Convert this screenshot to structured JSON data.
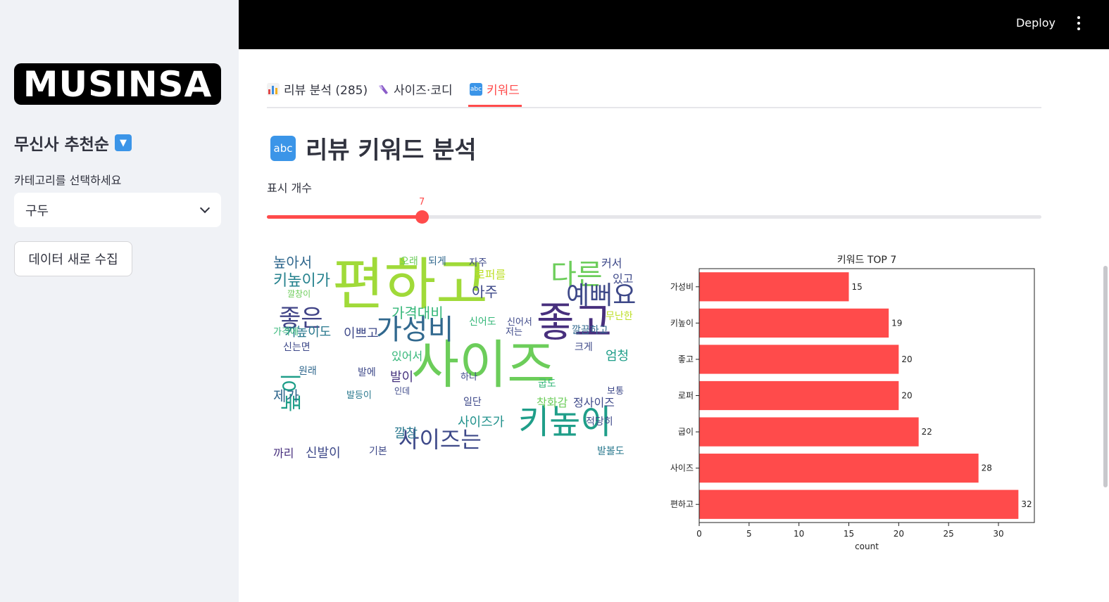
{
  "sidebar": {
    "logo_text": "MUSINSA",
    "title": "무신사 추천순",
    "title_icon": "down-arrow-icon",
    "category_label": "카테고리를 선택하세요",
    "category_value": "구두",
    "refresh_button": "데이터 새로 수집"
  },
  "header": {
    "deploy": "Deploy"
  },
  "tabs": [
    {
      "label": "리뷰 분석 (285)",
      "icon": "bar-chart-icon"
    },
    {
      "label": "사이즈·코디",
      "icon": "shoe-icon"
    },
    {
      "label": "키워드",
      "icon": "abc-icon"
    }
  ],
  "main": {
    "heading": "리뷰 키워드 분석",
    "heading_icon": "abc-icon",
    "slider_label": "표시 개수",
    "slider_value": "7",
    "slider_fraction": 0.2
  },
  "wordcloud": {
    "words": [
      {
        "text": "편하고",
        "color": "#a0da39",
        "size": 80
      },
      {
        "text": "사이즈",
        "color": "#6ccd5a",
        "size": 74
      },
      {
        "text": "좋고",
        "color": "#472f7d",
        "size": 58
      },
      {
        "text": "키높이",
        "color": "#1f9e89",
        "size": 48
      },
      {
        "text": "가성비",
        "color": "#31688e",
        "size": 40
      },
      {
        "text": "다른",
        "color": "#6ccd5a",
        "size": 40
      },
      {
        "text": "예뻐요",
        "color": "#3e4989",
        "size": 36
      },
      {
        "text": "좋은",
        "color": "#414487",
        "size": 34
      },
      {
        "text": "사이즈는",
        "color": "#3e4989",
        "size": 32
      },
      {
        "text": "높이",
        "color": "#1f9e89",
        "size": 30
      },
      {
        "text": "키높이가",
        "color": "#26828e",
        "size": 22
      },
      {
        "text": "높아서",
        "color": "#31688e",
        "size": 20
      },
      {
        "text": "가격대비",
        "color": "#35b779",
        "size": 20
      },
      {
        "text": "아주",
        "color": "#3e4989",
        "size": 20
      },
      {
        "text": "키높이도",
        "color": "#2a788e",
        "size": 18
      },
      {
        "text": "이쁘고",
        "color": "#3e4989",
        "size": 18
      },
      {
        "text": "엄청",
        "color": "#1f9e89",
        "size": 18
      },
      {
        "text": "발이",
        "color": "#46337e",
        "size": 18
      },
      {
        "text": "제가",
        "color": "#31688e",
        "size": 20
      },
      {
        "text": "까리",
        "color": "#472f7d",
        "size": 16
      },
      {
        "text": "신발이",
        "color": "#3e4989",
        "size": 18
      },
      {
        "text": "깔창",
        "color": "#2a788e",
        "size": 18
      },
      {
        "text": "사이즈가",
        "color": "#21918c",
        "size": 18
      },
      {
        "text": "정사이즈",
        "color": "#3e4989",
        "size": 16
      },
      {
        "text": "착화감",
        "color": "#6ccd5a",
        "size": 16
      },
      {
        "text": "커서",
        "color": "#3e4989",
        "size": 16
      },
      {
        "text": "로퍼를",
        "color": "#bddf26",
        "size": 16
      },
      {
        "text": "오래",
        "color": "#6ccd5a",
        "size": 14
      },
      {
        "text": "되게",
        "color": "#31688e",
        "size": 14
      },
      {
        "text": "자주",
        "color": "#3e4989",
        "size": 14
      },
      {
        "text": "신어도",
        "color": "#35b779",
        "size": 14
      },
      {
        "text": "있고",
        "color": "#3e4989",
        "size": 16
      },
      {
        "text": "무난한",
        "color": "#bddf26",
        "size": 14
      },
      {
        "text": "깔끔하고",
        "color": "#31688e",
        "size": 14
      },
      {
        "text": "신는면",
        "color": "#3e4989",
        "size": 14
      },
      {
        "text": "원래",
        "color": "#31688e",
        "size": 14
      },
      {
        "text": "발에",
        "color": "#3e4989",
        "size": 14
      },
      {
        "text": "있어서",
        "color": "#35b779",
        "size": 16
      },
      {
        "text": "적당히",
        "color": "#3e4989",
        "size": 14
      },
      {
        "text": "발볼도",
        "color": "#2a788e",
        "size": 14
      },
      {
        "text": "기본",
        "color": "#3e4989",
        "size": 14
      },
      {
        "text": "굽도",
        "color": "#35b779",
        "size": 14
      },
      {
        "text": "크게",
        "color": "#3e4989",
        "size": 14
      },
      {
        "text": "일단",
        "color": "#3e4989",
        "size": 14
      },
      {
        "text": "하나",
        "color": "#3e4989",
        "size": 13
      },
      {
        "text": "가격에",
        "color": "#35b779",
        "size": 13
      },
      {
        "text": "저는",
        "color": "#3e4989",
        "size": 13
      },
      {
        "text": "신어서",
        "color": "#3e4989",
        "size": 13
      },
      {
        "text": "발등이",
        "color": "#2a788e",
        "size": 13
      },
      {
        "text": "인데",
        "color": "#3e4989",
        "size": 12
      },
      {
        "text": "깔창이",
        "color": "#6ccd5a",
        "size": 12
      },
      {
        "text": "보통",
        "color": "#3e4989",
        "size": 13
      }
    ]
  },
  "chart_data": {
    "type": "bar",
    "orientation": "horizontal",
    "title": "키워드 TOP 7",
    "xlabel": "count",
    "ylabel": "",
    "categories": [
      "가성비",
      "키높이",
      "좋고",
      "로퍼",
      "굽이",
      "사이즈",
      "편하고"
    ],
    "values": [
      15,
      19,
      20,
      20,
      22,
      28,
      32
    ],
    "xlim": [
      0,
      33.6
    ],
    "xticks": [
      0,
      5,
      10,
      15,
      20,
      25,
      30
    ],
    "bar_color": "#ff4b4b",
    "data_labels": true,
    "grid": false
  },
  "colors": {
    "accent": "#ff4b4b",
    "sidebar_bg": "#f0f2f6",
    "header_bg": "#000000"
  }
}
